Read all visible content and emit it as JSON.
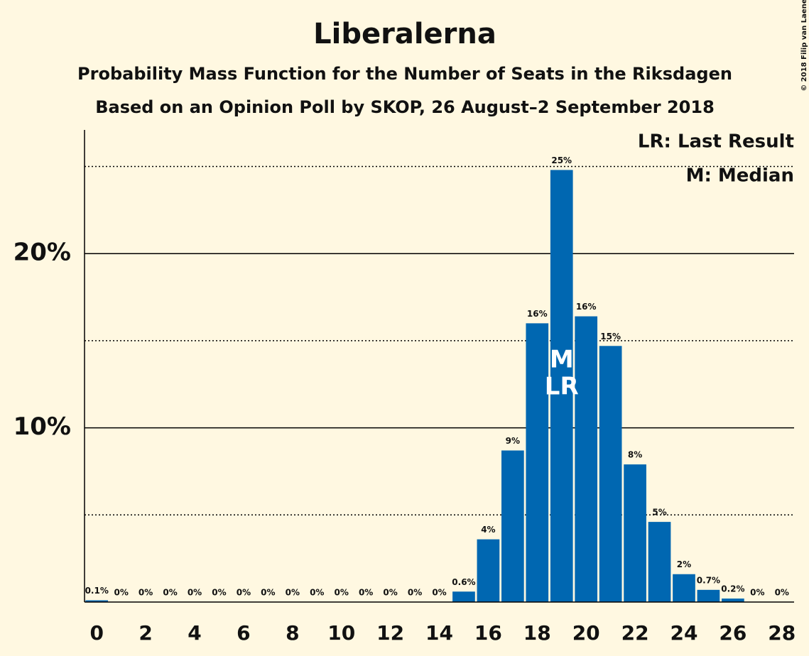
{
  "chart_data": {
    "type": "bar",
    "title": "Liberalerna",
    "subtitle": "Probability Mass Function for the Number of Seats in the Riksdagen",
    "subtitle2": "Based on an Opinion Poll by SKOP, 26 August–2 September 2018",
    "copyright": "© 2018 Filip van Laenen",
    "legend": [
      "LR: Last Result",
      "M: Median"
    ],
    "x": [
      0,
      1,
      2,
      3,
      4,
      5,
      6,
      7,
      8,
      9,
      10,
      11,
      12,
      13,
      14,
      15,
      16,
      17,
      18,
      19,
      20,
      21,
      22,
      23,
      24,
      25,
      26,
      27,
      28
    ],
    "values": [
      0.1,
      0,
      0,
      0,
      0,
      0,
      0,
      0,
      0,
      0,
      0,
      0,
      0,
      0,
      0,
      0.6,
      3.6,
      8.7,
      16.0,
      24.8,
      16.4,
      14.7,
      7.9,
      4.6,
      1.6,
      0.7,
      0.2,
      0,
      0
    ],
    "value_labels": [
      "0.1%",
      "0%",
      "0%",
      "0%",
      "0%",
      "0%",
      "0%",
      "0%",
      "0%",
      "0%",
      "0%",
      "0%",
      "0%",
      "0%",
      "0%",
      "0.6%",
      "4%",
      "9%",
      "16%",
      "25%",
      "16%",
      "15%",
      "8%",
      "5%",
      "2%",
      "0.7%",
      "0.2%",
      "0%",
      "0%"
    ],
    "color": "#0067b1",
    "xlim": [
      -0.5,
      28.5
    ],
    "xticks": [
      0,
      2,
      4,
      6,
      8,
      10,
      12,
      14,
      16,
      18,
      20,
      22,
      24,
      26,
      28
    ],
    "ylim": [
      0,
      27.1
    ],
    "yticks": [
      {
        "value": 10,
        "label": "10%"
      },
      {
        "value": 20,
        "label": "20%"
      }
    ],
    "minor_gridlines": [
      5,
      15,
      25
    ],
    "annotations": [
      {
        "text": "M",
        "x": 19
      },
      {
        "text": "LR",
        "x": 19
      }
    ]
  }
}
